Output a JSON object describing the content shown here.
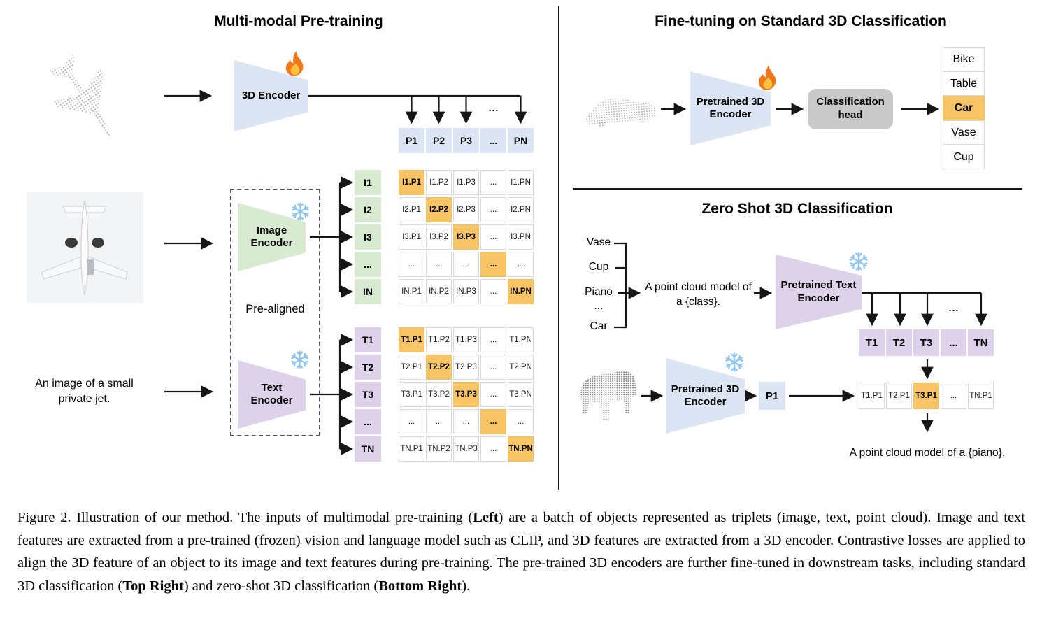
{
  "pretraining": {
    "title": "Multi-modal Pre-training",
    "encoder_3d_label": "3D Encoder",
    "image_encoder_label": [
      "Image",
      "Encoder"
    ],
    "text_encoder_label": [
      "Text",
      "Encoder"
    ],
    "pre_aligned_label": "Pre-aligned",
    "image_caption": [
      "An image of a small",
      "private jet."
    ],
    "ellipsis": "...",
    "p_row": [
      "P1",
      "P2",
      "P3",
      "...",
      "PN"
    ],
    "image_feature_col": [
      "I1",
      "I2",
      "I3",
      "...",
      "IN"
    ],
    "text_feature_col": [
      "T1",
      "T2",
      "T3",
      "...",
      "TN"
    ],
    "image_matrix": [
      [
        "I1.P1",
        "I1.P2",
        "I1.P3",
        "...",
        "I1.PN"
      ],
      [
        "I2.P1",
        "I2.P2",
        "I2.P3",
        "...",
        "I2.PN"
      ],
      [
        "I3.P1",
        "I3.P2",
        "I3.P3",
        "...",
        "I3.PN"
      ],
      [
        "...",
        "...",
        "...",
        "...",
        "..."
      ],
      [
        "IN.P1",
        "IN.P2",
        "IN.P3",
        "...",
        "IN.PN"
      ]
    ],
    "text_matrix": [
      [
        "T1.P1",
        "T1.P2",
        "T1.P3",
        "...",
        "T1.PN"
      ],
      [
        "T2.P1",
        "T2.P2",
        "T2.P3",
        "...",
        "T2.PN"
      ],
      [
        "T3.P1",
        "T3.P2",
        "T3.P3",
        "...",
        "T3.PN"
      ],
      [
        "...",
        "...",
        "...",
        "...",
        "..."
      ],
      [
        "TN.P1",
        "TN.P2",
        "TN.P3",
        "...",
        "TN.PN"
      ]
    ]
  },
  "finetune": {
    "title": "Fine-tuning on Standard 3D Classification",
    "encoder_label": [
      "Pretrained 3D",
      "Encoder"
    ],
    "head_label": [
      "Classification",
      "head"
    ],
    "classes": [
      "Bike",
      "Table",
      "Car",
      "Vase",
      "Cup"
    ],
    "predicted_class": "Car"
  },
  "zeroshot": {
    "title": "Zero Shot 3D Classification",
    "class_list": [
      "Vase",
      "Cup",
      "Piano",
      "...",
      "Car"
    ],
    "prompt": [
      "A point cloud model of",
      "a {class}."
    ],
    "text_encoder_label": [
      "Pretrained Text",
      "Encoder"
    ],
    "encoder_label": [
      "Pretrained 3D",
      "Encoder"
    ],
    "p1_label": "P1",
    "t_row": [
      "T1",
      "T2",
      "T3",
      "...",
      "TN"
    ],
    "tp_row": [
      "T1.P1",
      "T2.P1",
      "T3.P1",
      "...",
      "TN.P1"
    ],
    "tp_highlight": "T3.P1",
    "ellipsis": "...",
    "result_text": "A point cloud model of a {piano}."
  },
  "caption": {
    "segments": [
      {
        "text": "Figure 2. Illustration of our method. The inputs of multimodal pre-training ("
      },
      {
        "text": "Left",
        "bold": true
      },
      {
        "text": ") are a batch of objects represented as triplets (image, text, point cloud). Image and text features are extracted from a pre-trained (frozen) vision and language model such as CLIP, and 3D features are extracted from a 3D encoder. Contrastive losses are applied to align the 3D feature of an object to its image and text features during pre-training. The pre-trained 3D encoders are further fine-tuned in downstream tasks, including standard 3D classification ("
      },
      {
        "text": "Top Right",
        "bold": true
      },
      {
        "text": ") and zero-shot 3D classification ("
      },
      {
        "text": "Bottom Right",
        "bold": true
      },
      {
        "text": ")."
      }
    ]
  },
  "colors": {
    "encoder_blue": "#dbe5f4",
    "encoder_green": "#d9ead3",
    "encoder_purple": "#ddd2e9",
    "highlight_orange": "#f8c566",
    "head_gray": "#c9c9c9",
    "cell_border": "#d9d9d9",
    "arrow_black": "#161616"
  }
}
